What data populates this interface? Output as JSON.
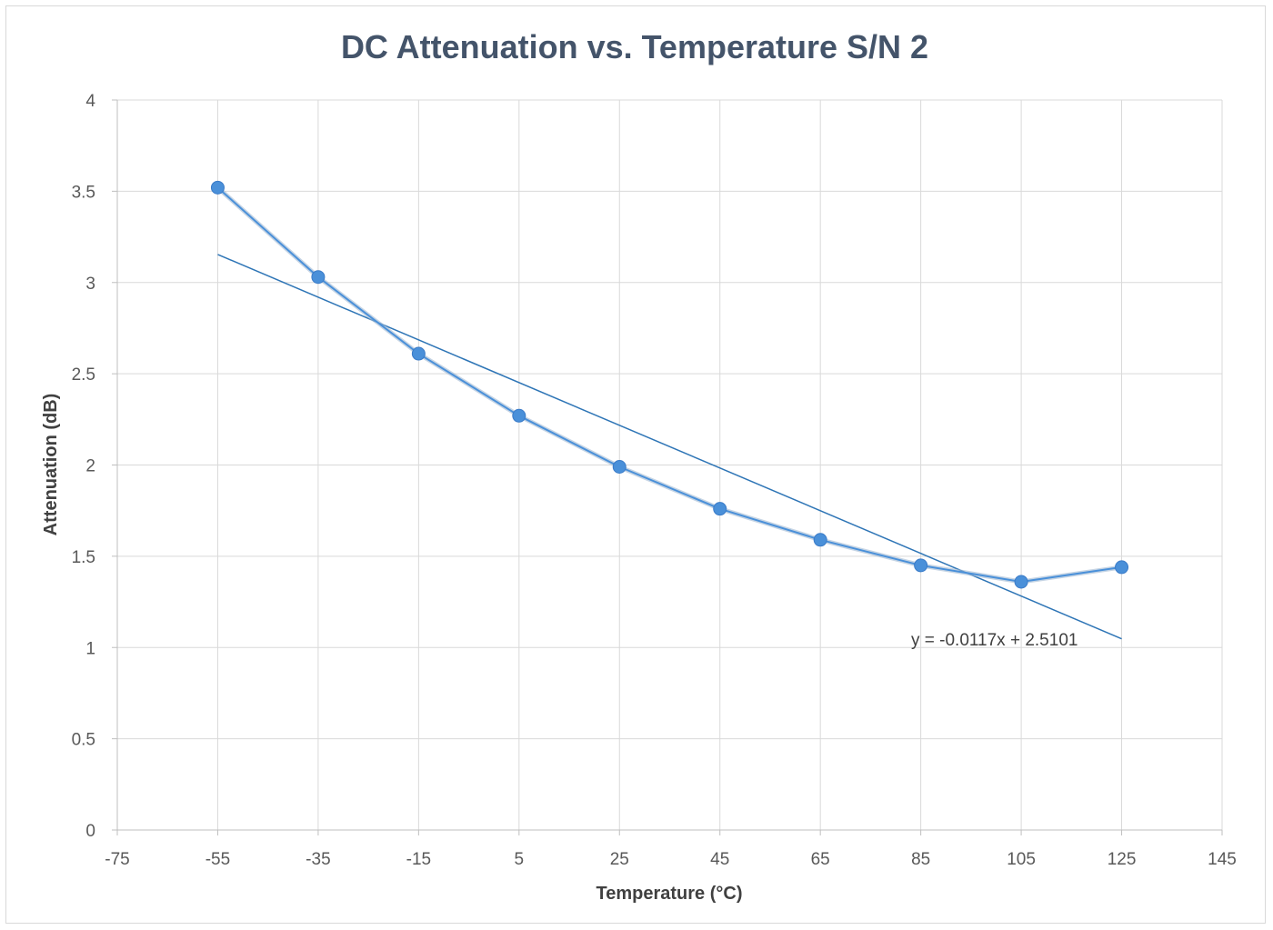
{
  "chart_data": {
    "type": "scatter",
    "title": "DC Attenuation vs. Temperature S/N 2",
    "xlabel": "Temperature (°C)",
    "ylabel": "Attenuation (dB)",
    "xlim": [
      -75,
      145
    ],
    "ylim": [
      0,
      4
    ],
    "x_ticks": [
      "-75",
      "-55",
      "-35",
      "-15",
      "5",
      "25",
      "45",
      "65",
      "85",
      "105",
      "125",
      "145"
    ],
    "y_ticks": [
      "0",
      "0.5",
      "1",
      "1.5",
      "2",
      "2.5",
      "3",
      "3.5",
      "4"
    ],
    "x_tick_values": [
      -75,
      -55,
      -35,
      -15,
      5,
      25,
      45,
      65,
      85,
      105,
      125,
      145
    ],
    "y_tick_values": [
      0,
      0.5,
      1,
      1.5,
      2,
      2.5,
      3,
      3.5,
      4
    ],
    "grid": true,
    "legend": "none",
    "series": [
      {
        "x": [
          -55,
          -35,
          -15,
          5,
          25,
          45,
          65,
          85,
          105,
          125
        ],
        "y": [
          3.52,
          3.03,
          2.61,
          2.27,
          1.99,
          1.76,
          1.59,
          1.45,
          1.36,
          1.44
        ],
        "color": "#4a90d9",
        "marker": "circle",
        "connected": true
      }
    ],
    "trendline": {
      "slope": -0.0117,
      "intercept": 2.5101,
      "x_range": [
        -55,
        125
      ],
      "label": "y = -0.0117x + 2.5101",
      "color": "#2e75b6"
    }
  }
}
